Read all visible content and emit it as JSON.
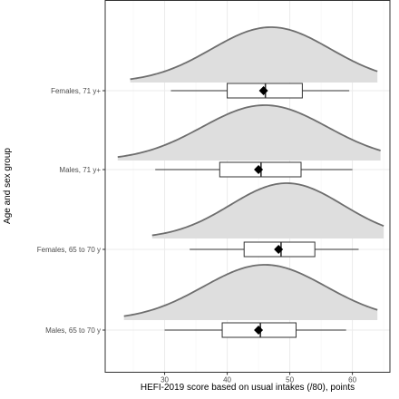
{
  "chart_data": {
    "type": "ridgeline-boxplot",
    "title": "",
    "xlabel": "HEFI-2019 score based on usual intakes (/80), points",
    "ylabel": "Age and sex group",
    "xlim": [
      20.5,
      66
    ],
    "x_ticks": [
      30,
      40,
      50,
      60
    ],
    "x_tick_labels": [
      "30",
      "40",
      "50",
      "60"
    ],
    "grid": true,
    "groups": [
      {
        "label": "Females, 71 y+",
        "density": {
          "min": 24.5,
          "max": 64.0,
          "mode": 47.0,
          "sd": 9.5
        },
        "box": {
          "whisker_low": 31.0,
          "q1": 40.0,
          "median": 46.1,
          "q3": 52.0,
          "whisker_high": 59.5
        },
        "mean": 45.8
      },
      {
        "label": "Males, 71 y+",
        "density": {
          "min": 22.5,
          "max": 64.5,
          "mode": 46.0,
          "sd": 10.0
        },
        "box": {
          "whisker_low": 28.5,
          "q1": 38.8,
          "median": 45.4,
          "q3": 51.8,
          "whisker_high": 60.0
        },
        "mean": 45.0
      },
      {
        "label": "Females, 65 to 70 y",
        "density": {
          "min": 28.0,
          "max": 65.0,
          "mode": 49.5,
          "sd": 9.0
        },
        "box": {
          "whisker_low": 34.0,
          "q1": 42.7,
          "median": 48.6,
          "q3": 54.0,
          "whisker_high": 61.0
        },
        "mean": 48.2
      },
      {
        "label": "Males, 65 to 70 y",
        "density": {
          "min": 23.5,
          "max": 64.0,
          "mode": 46.0,
          "sd": 9.8
        },
        "box": {
          "whisker_low": 30.0,
          "q1": 39.2,
          "median": 45.3,
          "q3": 51.0,
          "whisker_high": 59.0
        },
        "mean": 45.0
      }
    ],
    "colors": {
      "density_fill": "#dedede",
      "density_line": "#6e6e6e",
      "grid_major": "#ebebeb",
      "grid_minor": "#f5f5f5",
      "panel_border": "#333333",
      "box_line": "#333333",
      "mean_marker": "#000000"
    }
  }
}
